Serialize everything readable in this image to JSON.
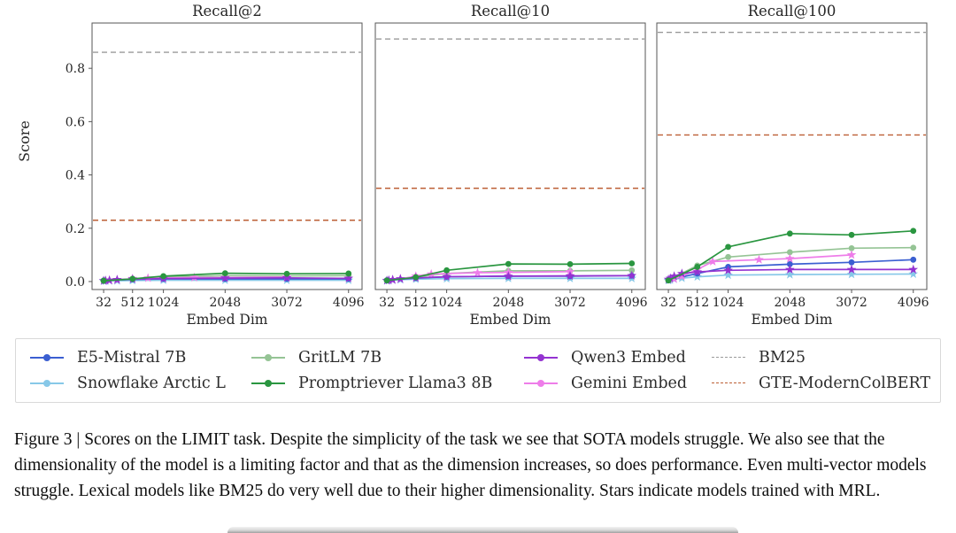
{
  "figure": {
    "ylabel": "Score",
    "xlabel": "Embed Dim",
    "xticks": [
      32,
      512,
      1024,
      2048,
      3072,
      4096
    ],
    "ytick_labels": [
      "0.0",
      "0.2",
      "0.4",
      "0.6",
      "0.8"
    ],
    "ytick_values": [
      0.0,
      0.2,
      0.4,
      0.6,
      0.8
    ],
    "xlim": [
      -160,
      4320
    ],
    "ylim": [
      -0.03,
      0.97
    ],
    "grid": false,
    "axis_color": "#555555"
  },
  "chart_data": [
    {
      "type": "line",
      "title": "Recall@2",
      "xlabel": "Embed Dim",
      "ylabel": "Score",
      "xlim": [
        -160,
        4320
      ],
      "ylim": [
        -0.03,
        0.97
      ],
      "xticks": [
        32,
        512,
        1024,
        2048,
        3072,
        4096
      ],
      "show_ytick_labels": true,
      "hlines": [
        {
          "name": "BM25",
          "y": 0.86,
          "color": "#9a9a9a"
        },
        {
          "name": "GTE-ModernColBERT",
          "y": 0.23,
          "color": "#bc5f35"
        }
      ],
      "series": [
        {
          "name": "Snowflake Arctic L",
          "color": "#87c8e8",
          "marker": "star",
          "x": [
            32,
            64,
            128,
            256,
            512,
            1024,
            2048,
            3072,
            4096
          ],
          "y": [
            0.002,
            0.002,
            0.003,
            0.003,
            0.004,
            0.005,
            0.005,
            0.005,
            0.005
          ]
        },
        {
          "name": "E5-Mistral 7B",
          "color": "#3b5fd1",
          "marker": "circle",
          "x": [
            32,
            512,
            1024,
            2048,
            3072,
            4096
          ],
          "y": [
            0.004,
            0.008,
            0.01,
            0.01,
            0.01,
            0.01
          ]
        },
        {
          "name": "GritLM 7B",
          "color": "#95c495",
          "marker": "circle",
          "x": [
            32,
            512,
            1024,
            2048,
            3072,
            4096
          ],
          "y": [
            0.003,
            0.01,
            0.017,
            0.022,
            0.021,
            0.022
          ]
        },
        {
          "name": "Gemini Embed",
          "color": "#ee7de9",
          "marker": "star",
          "x": [
            128,
            256,
            512,
            768,
            1536,
            2048,
            3072
          ],
          "y": [
            0.004,
            0.006,
            0.011,
            0.013,
            0.015,
            0.015,
            0.017
          ]
        },
        {
          "name": "Qwen3 Embed",
          "color": "#9433d1",
          "marker": "star",
          "x": [
            32,
            64,
            128,
            256,
            512,
            1024,
            2048,
            3072,
            4096
          ],
          "y": [
            0.003,
            0.004,
            0.005,
            0.007,
            0.009,
            0.011,
            0.013,
            0.014,
            0.012
          ]
        },
        {
          "name": "Promptriever Llama3 8B",
          "color": "#2a9640",
          "marker": "circle",
          "x": [
            32,
            512,
            1024,
            2048,
            3072,
            4096
          ],
          "y": [
            0.003,
            0.01,
            0.02,
            0.031,
            0.029,
            0.03
          ]
        }
      ]
    },
    {
      "type": "line",
      "title": "Recall@10",
      "xlabel": "Embed Dim",
      "ylabel": "Score",
      "xlim": [
        -160,
        4320
      ],
      "ylim": [
        -0.03,
        0.97
      ],
      "xticks": [
        32,
        512,
        1024,
        2048,
        3072,
        4096
      ],
      "show_ytick_labels": false,
      "hlines": [
        {
          "name": "BM25",
          "y": 0.91,
          "color": "#9a9a9a"
        },
        {
          "name": "GTE-ModernColBERT",
          "y": 0.35,
          "color": "#bc5f35"
        }
      ],
      "series": [
        {
          "name": "Snowflake Arctic L",
          "color": "#87c8e8",
          "marker": "star",
          "x": [
            32,
            64,
            128,
            256,
            512,
            1024,
            2048,
            3072,
            4096
          ],
          "y": [
            0.003,
            0.004,
            0.005,
            0.007,
            0.009,
            0.011,
            0.012,
            0.012,
            0.012
          ]
        },
        {
          "name": "E5-Mistral 7B",
          "color": "#3b5fd1",
          "marker": "circle",
          "x": [
            32,
            512,
            1024,
            2048,
            3072,
            4096
          ],
          "y": [
            0.005,
            0.013,
            0.018,
            0.02,
            0.02,
            0.022
          ]
        },
        {
          "name": "GritLM 7B",
          "color": "#95c495",
          "marker": "circle",
          "x": [
            32,
            512,
            1024,
            2048,
            3072,
            4096
          ],
          "y": [
            0.004,
            0.018,
            0.03,
            0.04,
            0.04,
            0.042
          ]
        },
        {
          "name": "Gemini Embed",
          "color": "#ee7de9",
          "marker": "star",
          "x": [
            128,
            256,
            512,
            768,
            1536,
            2048,
            3072
          ],
          "y": [
            0.006,
            0.01,
            0.02,
            0.028,
            0.033,
            0.034,
            0.037
          ]
        },
        {
          "name": "Qwen3 Embed",
          "color": "#9433d1",
          "marker": "star",
          "x": [
            32,
            64,
            128,
            256,
            512,
            1024,
            2048,
            3072,
            4096
          ],
          "y": [
            0.004,
            0.005,
            0.007,
            0.01,
            0.014,
            0.018,
            0.02,
            0.021,
            0.022
          ]
        },
        {
          "name": "Promptriever Llama3 8B",
          "color": "#2a9640",
          "marker": "circle",
          "x": [
            32,
            512,
            1024,
            2048,
            3072,
            4096
          ],
          "y": [
            0.004,
            0.016,
            0.042,
            0.066,
            0.065,
            0.068
          ]
        }
      ]
    },
    {
      "type": "line",
      "title": "Recall@100",
      "xlabel": "Embed Dim",
      "ylabel": "Score",
      "xlim": [
        -160,
        4320
      ],
      "ylim": [
        -0.03,
        0.97
      ],
      "xticks": [
        32,
        512,
        1024,
        2048,
        3072,
        4096
      ],
      "show_ytick_labels": false,
      "hlines": [
        {
          "name": "BM25",
          "y": 0.935,
          "color": "#9a9a9a"
        },
        {
          "name": "GTE-ModernColBERT",
          "y": 0.55,
          "color": "#bc5f35"
        }
      ],
      "series": [
        {
          "name": "Snowflake Arctic L",
          "color": "#87c8e8",
          "marker": "star",
          "x": [
            32,
            64,
            128,
            256,
            512,
            1024,
            2048,
            3072,
            4096
          ],
          "y": [
            0.004,
            0.006,
            0.009,
            0.013,
            0.018,
            0.024,
            0.026,
            0.027,
            0.028
          ]
        },
        {
          "name": "E5-Mistral 7B",
          "color": "#3b5fd1",
          "marker": "circle",
          "x": [
            32,
            512,
            1024,
            2048,
            3072,
            4096
          ],
          "y": [
            0.006,
            0.03,
            0.055,
            0.065,
            0.072,
            0.082
          ]
        },
        {
          "name": "GritLM 7B",
          "color": "#95c495",
          "marker": "circle",
          "x": [
            32,
            512,
            1024,
            2048,
            3072,
            4096
          ],
          "y": [
            0.005,
            0.06,
            0.092,
            0.11,
            0.125,
            0.127
          ]
        },
        {
          "name": "Gemini Embed",
          "color": "#ee7de9",
          "marker": "star",
          "x": [
            128,
            256,
            512,
            768,
            1536,
            2048,
            3072
          ],
          "y": [
            0.01,
            0.02,
            0.045,
            0.075,
            0.082,
            0.086,
            0.1
          ]
        },
        {
          "name": "Qwen3 Embed",
          "color": "#9433d1",
          "marker": "star",
          "x": [
            32,
            64,
            128,
            256,
            512,
            1024,
            2048,
            3072,
            4096
          ],
          "y": [
            0.008,
            0.012,
            0.02,
            0.03,
            0.036,
            0.042,
            0.045,
            0.045,
            0.045
          ]
        },
        {
          "name": "Promptriever Llama3 8B",
          "color": "#2a9640",
          "marker": "circle",
          "x": [
            32,
            512,
            1024,
            2048,
            3072,
            4096
          ],
          "y": [
            0.004,
            0.055,
            0.13,
            0.18,
            0.175,
            0.19
          ]
        }
      ]
    }
  ],
  "legend": {
    "items": [
      {
        "label": "E5-Mistral 7B",
        "color": "#3b5fd1",
        "style": "line-dot"
      },
      {
        "label": "GritLM 7B",
        "color": "#95c495",
        "style": "line-dot"
      },
      {
        "label": "Qwen3 Embed",
        "color": "#9433d1",
        "style": "line-dot"
      },
      {
        "label": "BM25",
        "color": "#9a9a9a",
        "style": "dashed"
      },
      {
        "label": "Snowflake Arctic L",
        "color": "#87c8e8",
        "style": "line-dot"
      },
      {
        "label": "Promptriever Llama3 8B",
        "color": "#2a9640",
        "style": "line-dot"
      },
      {
        "label": "Gemini Embed",
        "color": "#ee7de9",
        "style": "line-dot"
      },
      {
        "label": "GTE-ModernColBERT",
        "color": "#bc5f35",
        "style": "dashed"
      }
    ]
  },
  "caption": "Figure 3 | Scores on the LIMIT task. Despite the simplicity of the task we see that SOTA models struggle. We also see that the dimensionality of the model is a limiting factor and that as the dimension increases, so does performance. Even multi-vector models struggle. Lexical models like BM25 do very well due to their higher dimensionality. Stars indicate models trained with MRL."
}
